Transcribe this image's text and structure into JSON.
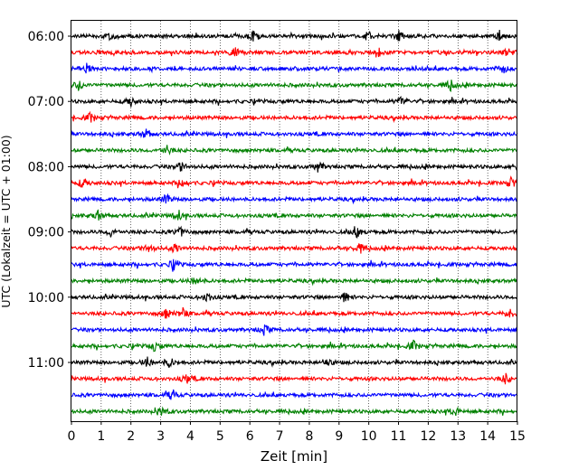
{
  "chart_data": {
    "type": "line",
    "title": "",
    "xlabel": "Zeit  [min]",
    "ylabel": "UTC (Lokalzeit = UTC + 01:00)",
    "xlim": [
      0,
      15
    ],
    "x_ticks": [
      0,
      1,
      2,
      3,
      4,
      5,
      6,
      7,
      8,
      9,
      10,
      11,
      12,
      13,
      14,
      15
    ],
    "y_tick_labels": [
      "06:00",
      "07:00",
      "08:00",
      "09:00",
      "10:00",
      "11:00"
    ],
    "grid": "vertical dotted lines at each minute",
    "trace_colors": [
      "#000000",
      "#ff0000",
      "#0000ff",
      "#008000"
    ],
    "traces": [
      {
        "start": "06:00",
        "color": "#000000",
        "events": [
          1.3,
          6.1,
          10.0,
          11.0,
          14.4
        ]
      },
      {
        "start": "06:15",
        "color": "#ff0000",
        "events": [
          5.5,
          10.3,
          14.7
        ]
      },
      {
        "start": "06:30",
        "color": "#0000ff",
        "events": [
          0.5,
          14.5
        ]
      },
      {
        "start": "06:45",
        "color": "#008000",
        "events": [
          0.25,
          12.75
        ]
      },
      {
        "start": "07:00",
        "color": "#000000",
        "events": [
          2.0,
          11.1
        ]
      },
      {
        "start": "07:15",
        "color": "#ff0000",
        "events": [
          0.65
        ]
      },
      {
        "start": "07:30",
        "color": "#0000ff",
        "events": [
          2.5
        ]
      },
      {
        "start": "07:45",
        "color": "#008000",
        "events": [
          3.2
        ]
      },
      {
        "start": "08:00",
        "color": "#000000",
        "events": [
          3.7,
          8.3,
          15.0
        ]
      },
      {
        "start": "08:15",
        "color": "#ff0000",
        "events": [
          0.4,
          3.75,
          14.8
        ]
      },
      {
        "start": "08:30",
        "color": "#0000ff",
        "events": [
          3.2
        ]
      },
      {
        "start": "08:45",
        "color": "#008000",
        "events": [
          0.9,
          3.6
        ]
      },
      {
        "start": "09:00",
        "color": "#000000",
        "events": [
          1.35,
          3.65,
          9.6
        ]
      },
      {
        "start": "09:15",
        "color": "#ff0000",
        "events": [
          2.6,
          3.5,
          9.7
        ]
      },
      {
        "start": "09:30",
        "color": "#0000ff",
        "events": [
          3.45
        ]
      },
      {
        "start": "09:45",
        "color": "#008000",
        "events": [
          4.2
        ]
      },
      {
        "start": "10:00",
        "color": "#000000",
        "events": [
          4.55,
          9.2
        ]
      },
      {
        "start": "10:15",
        "color": "#ff0000",
        "events": [
          3.2,
          3.75,
          14.75
        ]
      },
      {
        "start": "10:30",
        "color": "#0000ff",
        "events": [
          6.5
        ]
      },
      {
        "start": "10:45",
        "color": "#008000",
        "events": [
          2.8,
          11.5
        ]
      },
      {
        "start": "11:00",
        "color": "#000000",
        "events": [
          2.55,
          3.3,
          8.6
        ]
      },
      {
        "start": "11:15",
        "color": "#ff0000",
        "events": [
          3.9,
          14.6
        ]
      },
      {
        "start": "11:30",
        "color": "#0000ff",
        "events": [
          3.4
        ]
      },
      {
        "start": "11:45",
        "color": "#008000",
        "events": [
          3.0,
          12.9
        ]
      }
    ]
  }
}
